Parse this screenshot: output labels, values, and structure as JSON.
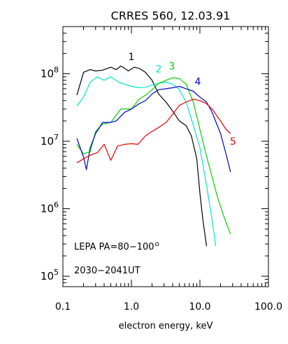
{
  "chart_data": {
    "type": "line",
    "title": "CRRES 560, 12.03.91",
    "xlabel": "electron energy, keV",
    "ylabel": "",
    "x_scale": "log",
    "y_scale": "log",
    "xlim": [
      0.1,
      100.0
    ],
    "ylim": [
      70000,
      500000000
    ],
    "x_ticks": [
      {
        "v": 0.1,
        "label": "0.1"
      },
      {
        "v": 1.0,
        "label": "1.0"
      },
      {
        "v": 10.0,
        "label": "10.0"
      },
      {
        "v": 100.0,
        "label": "100.0"
      }
    ],
    "y_ticks": [
      {
        "v": 100000,
        "base": "10",
        "exp": "5"
      },
      {
        "v": 1000000,
        "base": "10",
        "exp": "6"
      },
      {
        "v": 10000000,
        "base": "10",
        "exp": "7"
      },
      {
        "v": 100000000,
        "base": "10",
        "exp": "8"
      }
    ],
    "grid": false,
    "annotations": {
      "lepa": "LEPA PA=80−100",
      "degree": "o",
      "time": "2030−2041UT"
    },
    "series": [
      {
        "name": "1",
        "color": "#000000",
        "label_at": [
          1.0,
          160000000
        ],
        "points": [
          [
            0.16,
            48000000
          ],
          [
            0.2,
            105000000
          ],
          [
            0.25,
            115000000
          ],
          [
            0.3,
            110000000
          ],
          [
            0.38,
            113000000
          ],
          [
            0.5,
            125000000
          ],
          [
            0.6,
            115000000
          ],
          [
            0.7,
            130000000
          ],
          [
            0.8,
            120000000
          ],
          [
            0.9,
            110000000
          ],
          [
            1.1,
            125000000
          ],
          [
            1.3,
            120000000
          ],
          [
            1.6,
            105000000
          ],
          [
            2.0,
            80000000
          ],
          [
            2.5,
            50000000
          ],
          [
            3.2,
            38000000
          ],
          [
            4.0,
            28000000
          ],
          [
            5.0,
            20000000
          ],
          [
            6.3,
            17000000
          ],
          [
            7.5,
            12000000
          ],
          [
            9.0,
            5500000
          ],
          [
            10.0,
            1700000
          ],
          [
            11.0,
            700000
          ],
          [
            12.5,
            280000
          ]
        ]
      },
      {
        "name": "2",
        "color": "#00e6cc",
        "label_at": [
          2.5,
          105000000
        ],
        "points": [
          [
            0.16,
            33000000
          ],
          [
            0.2,
            45000000
          ],
          [
            0.25,
            75000000
          ],
          [
            0.32,
            90000000
          ],
          [
            0.4,
            80000000
          ],
          [
            0.5,
            90000000
          ],
          [
            0.65,
            75000000
          ],
          [
            0.8,
            70000000
          ],
          [
            1.0,
            65000000
          ],
          [
            1.3,
            62000000
          ],
          [
            1.6,
            63000000
          ],
          [
            2.0,
            68000000
          ],
          [
            2.5,
            72000000
          ],
          [
            3.2,
            75000000
          ],
          [
            4.0,
            70000000
          ],
          [
            5.0,
            58000000
          ],
          [
            6.3,
            38000000
          ],
          [
            7.9,
            18000000
          ],
          [
            10.0,
            8000000
          ],
          [
            12.5,
            2200000
          ],
          [
            15.0,
            700000
          ],
          [
            17.0,
            280000
          ]
        ]
      },
      {
        "name": "3",
        "color": "#00d000",
        "label_at": [
          3.9,
          115000000
        ],
        "points": [
          [
            0.16,
            9000000
          ],
          [
            0.2,
            6500000
          ],
          [
            0.25,
            7000000
          ],
          [
            0.3,
            14000000
          ],
          [
            0.38,
            18000000
          ],
          [
            0.5,
            19000000
          ],
          [
            0.7,
            30000000
          ],
          [
            0.85,
            30000000
          ],
          [
            1.0,
            30000000
          ],
          [
            1.3,
            42000000
          ],
          [
            1.6,
            48000000
          ],
          [
            2.0,
            58000000
          ],
          [
            2.5,
            72000000
          ],
          [
            3.2,
            80000000
          ],
          [
            4.0,
            87000000
          ],
          [
            5.0,
            85000000
          ],
          [
            6.3,
            70000000
          ],
          [
            8.0,
            38000000
          ],
          [
            10.0,
            15000000
          ],
          [
            12.5,
            6000000
          ],
          [
            15.0,
            3000000
          ],
          [
            18.0,
            1500000
          ],
          [
            22.0,
            800000
          ],
          [
            28.0,
            420000
          ]
        ]
      },
      {
        "name": "4",
        "color": "#0000cc",
        "label_at": [
          9.3,
          68000000
        ],
        "points": [
          [
            0.16,
            11000000
          ],
          [
            0.2,
            5800000
          ],
          [
            0.22,
            3800000
          ],
          [
            0.25,
            8000000
          ],
          [
            0.3,
            13000000
          ],
          [
            0.38,
            19000000
          ],
          [
            0.5,
            19000000
          ],
          [
            0.6,
            20000000
          ],
          [
            0.8,
            27000000
          ],
          [
            1.0,
            30000000
          ],
          [
            1.3,
            36000000
          ],
          [
            1.6,
            40000000
          ],
          [
            2.0,
            50000000
          ],
          [
            2.5,
            58000000
          ],
          [
            3.2,
            60000000
          ],
          [
            4.0,
            62000000
          ],
          [
            5.0,
            65000000
          ],
          [
            6.3,
            60000000
          ],
          [
            8.0,
            55000000
          ],
          [
            10.0,
            45000000
          ],
          [
            12.5,
            38000000
          ],
          [
            15.0,
            27000000
          ],
          [
            20.0,
            13000000
          ],
          [
            24.0,
            6500000
          ],
          [
            28.0,
            3500000
          ]
        ]
      },
      {
        "name": "5",
        "color": "#e60000",
        "label_at": [
          30.5,
          8900000
        ],
        "points": [
          [
            0.16,
            4800000
          ],
          [
            0.2,
            5500000
          ],
          [
            0.25,
            6200000
          ],
          [
            0.32,
            6800000
          ],
          [
            0.4,
            9000000
          ],
          [
            0.5,
            5200000
          ],
          [
            0.63,
            8500000
          ],
          [
            0.8,
            9000000
          ],
          [
            1.0,
            9200000
          ],
          [
            1.25,
            9000000
          ],
          [
            1.6,
            12000000
          ],
          [
            2.0,
            14000000
          ],
          [
            2.5,
            16000000
          ],
          [
            3.2,
            19000000
          ],
          [
            4.0,
            25000000
          ],
          [
            5.0,
            34000000
          ],
          [
            6.3,
            38000000
          ],
          [
            8.0,
            42000000
          ],
          [
            10.0,
            40000000
          ],
          [
            12.5,
            36000000
          ],
          [
            15.0,
            30000000
          ],
          [
            20.0,
            20000000
          ],
          [
            24.0,
            15000000
          ],
          [
            28.0,
            13000000
          ]
        ]
      }
    ]
  }
}
